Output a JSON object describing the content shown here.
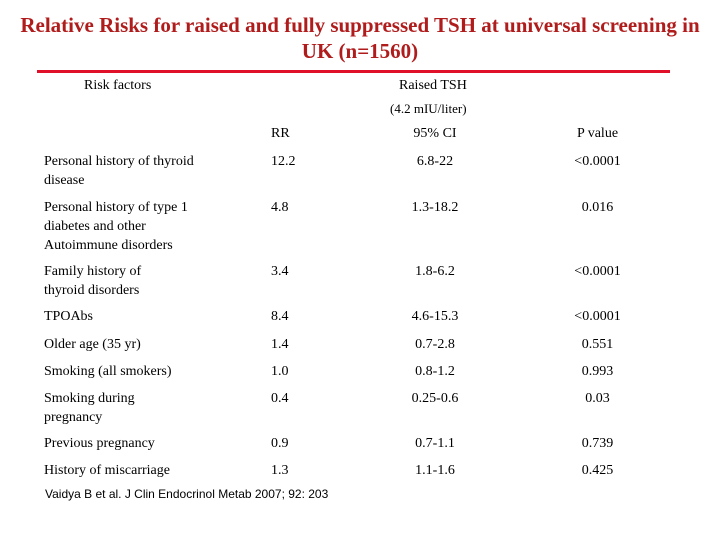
{
  "title": "Relative Risks for raised and fully suppressed TSH at universal screening in UK (n=1560)",
  "header": {
    "risk_factors": "Risk factors",
    "group": "Raised TSH",
    "group_unit": "(4.2 mIU/liter)",
    "rr": "RR",
    "ci": "95% CI",
    "p": "P value"
  },
  "rows": [
    {
      "factor": "Personal history of thyroid disease",
      "rr": "12.2",
      "ci": "6.8-22",
      "p": "<0.0001"
    },
    {
      "factor": "Personal history of type 1 diabetes and other Autoimmune disorders",
      "rr": "4.8",
      "ci": "1.3-18.2",
      "p": "0.016"
    },
    {
      "factor": "Family history of thyroid disorders",
      "rr": "3.4",
      "ci": "1.8-6.2",
      "p": "<0.0001"
    },
    {
      "factor": "TPOAbs",
      "rr": "8.4",
      "ci": "4.6-15.3",
      "p": "<0.0001"
    },
    {
      "factor": "Older age (35 yr)",
      "rr": "1.4",
      "ci": "0.7-2.8",
      "p": "0.551"
    },
    {
      "factor": "Smoking (all smokers)",
      "rr": "1.0",
      "ci": "0.8-1.2",
      "p": "0.993"
    },
    {
      "factor": "Smoking during pregnancy",
      "rr": "0.4",
      "ci": "0.25-0.6",
      "p": "0.03"
    },
    {
      "factor": "Previous pregnancy",
      "rr": "0.9",
      "ci": "0.7-1.1",
      "p": "0.739"
    },
    {
      "factor": "History of miscarriage",
      "rr": "1.3",
      "ci": "1.1-1.6",
      "p": "0.425"
    }
  ],
  "citation": "Vaidya B et al. J Clin Endocrinol Metab 2007; 92: 203",
  "colors": {
    "title": "#b01c1c",
    "rule": "#e0102a"
  }
}
